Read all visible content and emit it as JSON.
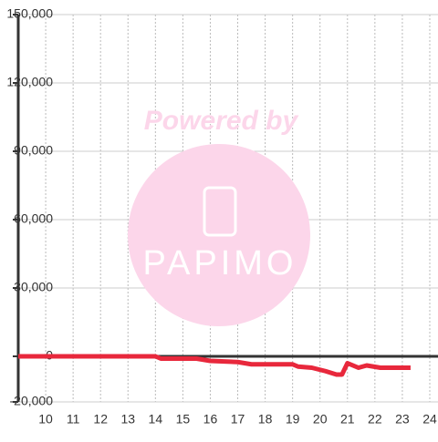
{
  "chart_data": {
    "type": "line",
    "x": [
      9,
      14,
      14.2,
      15.5,
      16,
      17,
      17.5,
      19,
      19.2,
      19.7,
      20.2,
      20.6,
      20.8,
      21,
      21.4,
      21.7,
      22.2,
      23.3
    ],
    "series": [
      {
        "color": "#e8283c",
        "values": [
          0,
          0,
          -1000,
          -1000,
          -2000,
          -2500,
          -3500,
          -3500,
          -4500,
          -5000,
          -6500,
          -8000,
          -8000,
          -3000,
          -5000,
          -4000,
          -5000,
          -5000
        ]
      }
    ],
    "xlim": [
      9,
      24.3
    ],
    "xticks": [
      10,
      11,
      12,
      13,
      14,
      15,
      16,
      17,
      18,
      19,
      20,
      21,
      22,
      23,
      24
    ],
    "ylim": [
      -20000,
      150000
    ],
    "yticks": [
      {
        "value": -20000,
        "label": "-20,000"
      },
      0,
      {
        "value": 30000,
        "label": "30,000"
      },
      {
        "value": 60000,
        "label": "60,000"
      },
      {
        "value": 90000,
        "label": "90,000"
      },
      {
        "value": 120000,
        "label": "120,000"
      },
      {
        "value": 150000,
        "label": "150,000"
      }
    ],
    "grid": true,
    "annotations": [
      "Powered by",
      "PAPIMO"
    ]
  }
}
